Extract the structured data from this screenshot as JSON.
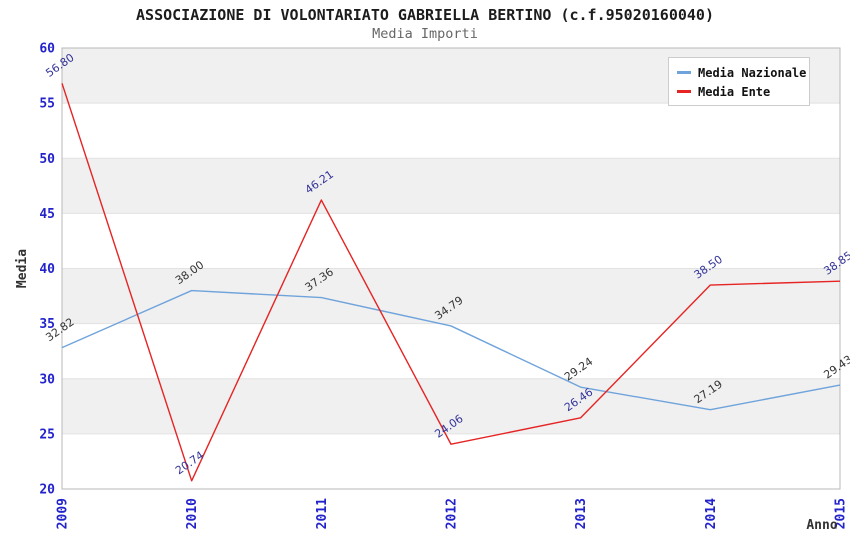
{
  "chart_data": {
    "type": "line",
    "title": "ASSOCIAZIONE DI VOLONTARIATO GABRIELLA BERTINO (c.f.95020160040)",
    "subtitle": "Media Importi",
    "xlabel": "Anno",
    "ylabel": "Media",
    "x": [
      "2009",
      "2010",
      "2011",
      "2012",
      "2013",
      "2014",
      "2015"
    ],
    "ylim": [
      20,
      60
    ],
    "yticks": [
      20,
      25,
      30,
      35,
      40,
      45,
      50,
      55,
      60
    ],
    "grid": true,
    "legend_position": "top-right",
    "series": [
      {
        "name": "Media Nazionale",
        "color": "#6fa3db",
        "label_color": "#333333",
        "values": [
          32.82,
          38.0,
          37.36,
          34.79,
          29.24,
          27.19,
          29.43
        ],
        "labels": [
          "32.82",
          "38.00",
          "37.36",
          "34.79",
          "29.24",
          "27.19",
          "29.43"
        ]
      },
      {
        "name": "Media Ente",
        "color": "#e62424",
        "label_color": "#333399",
        "values": [
          56.8,
          20.74,
          46.21,
          24.06,
          26.46,
          38.5,
          38.85
        ],
        "labels": [
          "56.80",
          "20.74",
          "46.21",
          "24.06",
          "26.46",
          "38.50",
          "38.85"
        ]
      }
    ],
    "band_colors": [
      "#ffffff",
      "#f0f0f0"
    ],
    "grid_color": "#e2e2e2",
    "axis_line_color": "#b8b8b8",
    "axis_tick_color": "#2323cc",
    "axis_title_color": "#333333",
    "title_color": "#1c1c1c",
    "subtitle_color": "#666666"
  }
}
